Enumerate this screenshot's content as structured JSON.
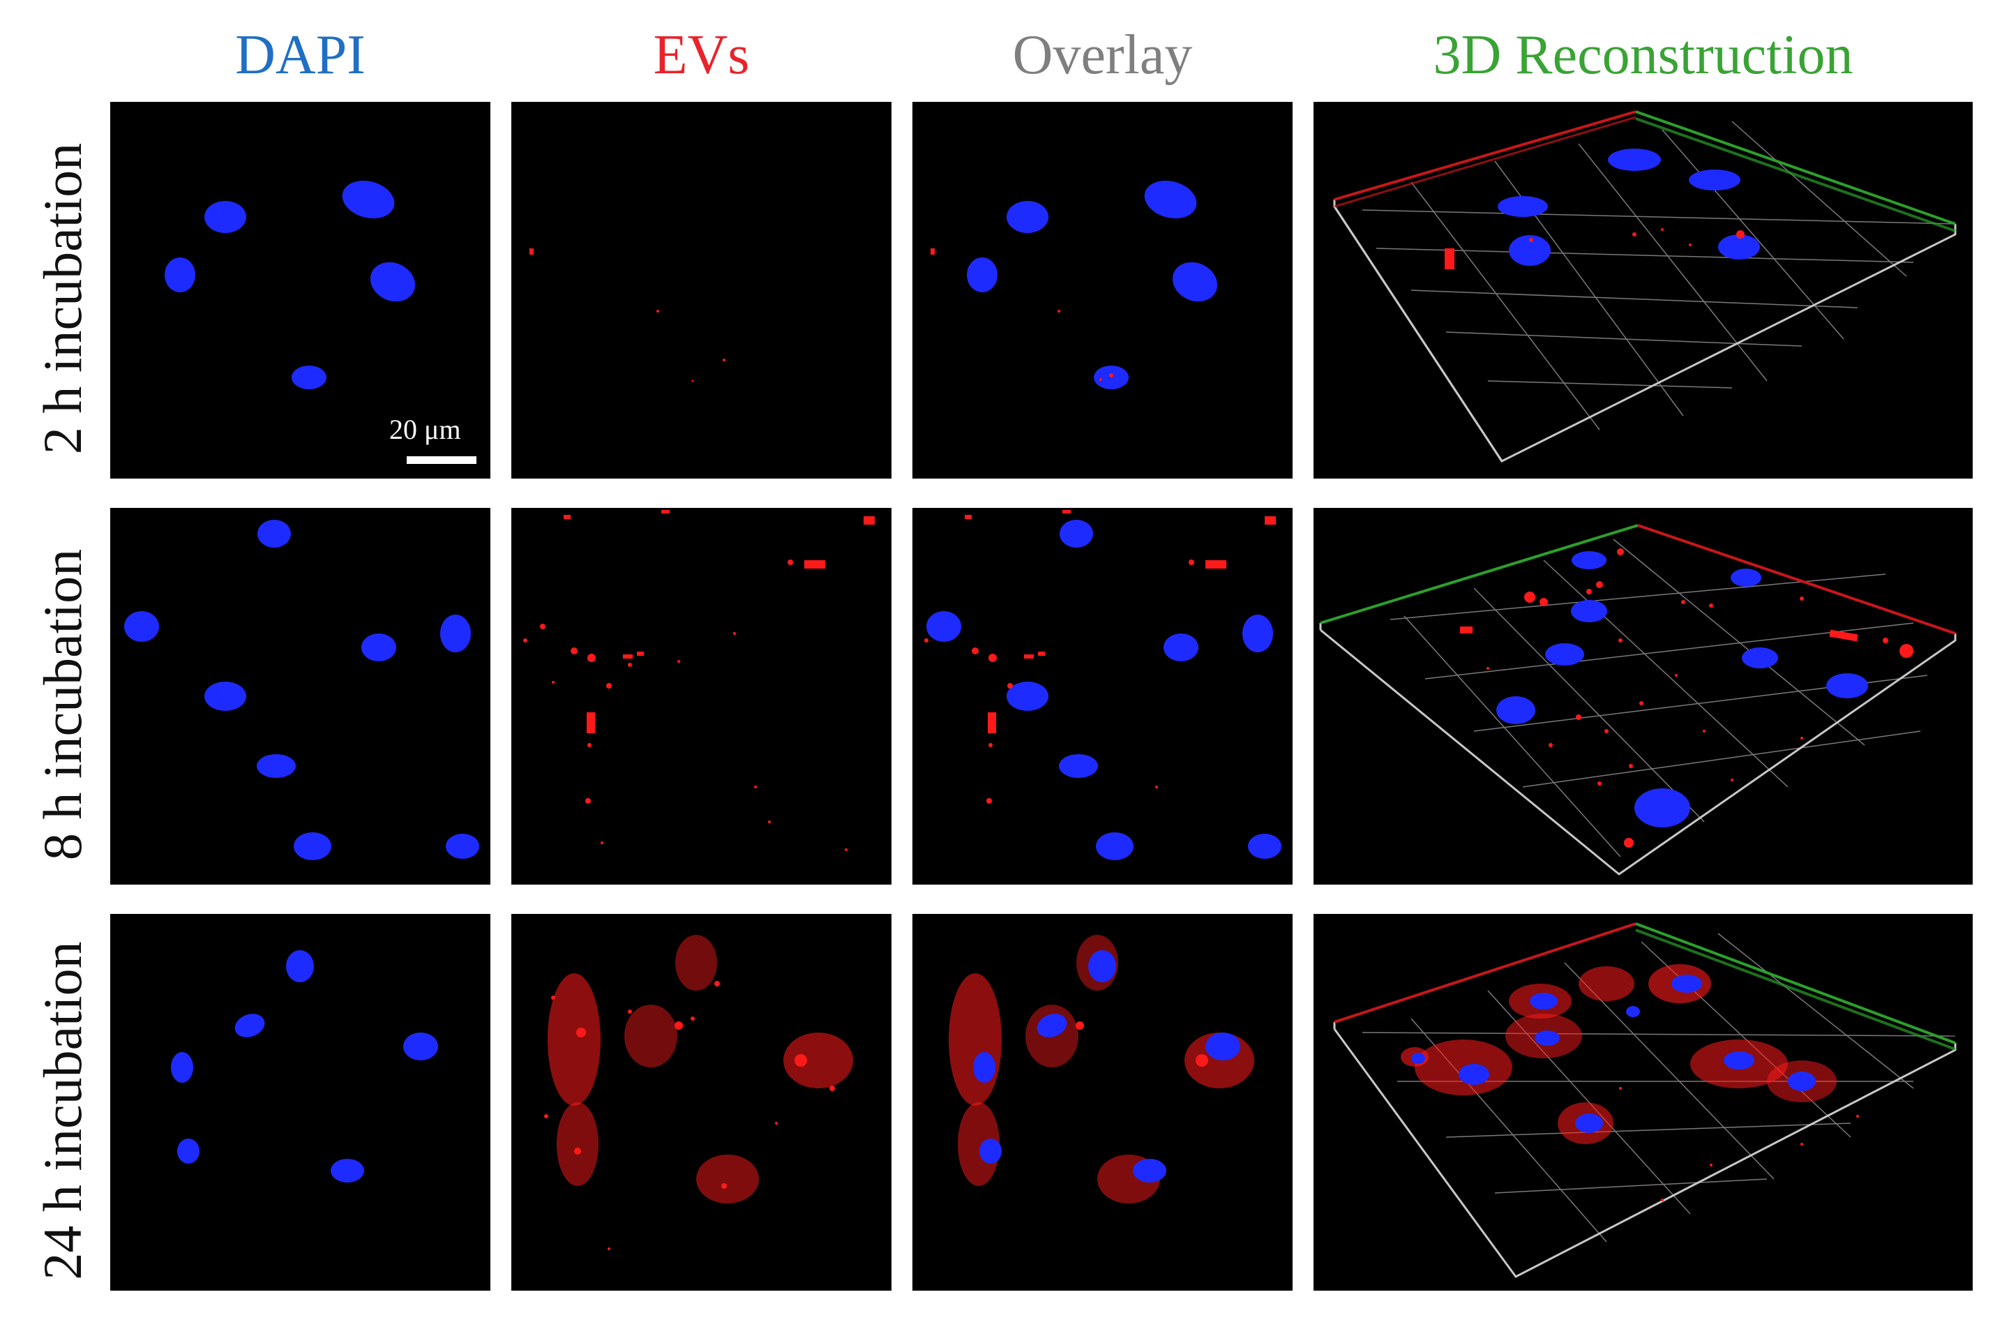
{
  "columns": {
    "dapi": {
      "label": "DAPI",
      "color": "#1f6fc4"
    },
    "evs": {
      "label": "EVs",
      "color": "#e8232b"
    },
    "overlay": {
      "label": "Overlay",
      "color": "#7f7f7f"
    },
    "reconstruction": {
      "label": "3D Reconstruction",
      "color": "#3aa335"
    }
  },
  "rows": [
    {
      "label": "2 h incubation"
    },
    {
      "label": "8 h incubation"
    },
    {
      "label": "24 h incubation"
    }
  ],
  "scale_bar": {
    "label": "20 μm"
  },
  "colors": {
    "nucleus": "#1e2bff",
    "ev": "#ff1a1a",
    "panel_bg": "#000000",
    "axis_red": "#c8161b",
    "axis_green": "#2ca02c",
    "grid": "#8a8a8a"
  }
}
